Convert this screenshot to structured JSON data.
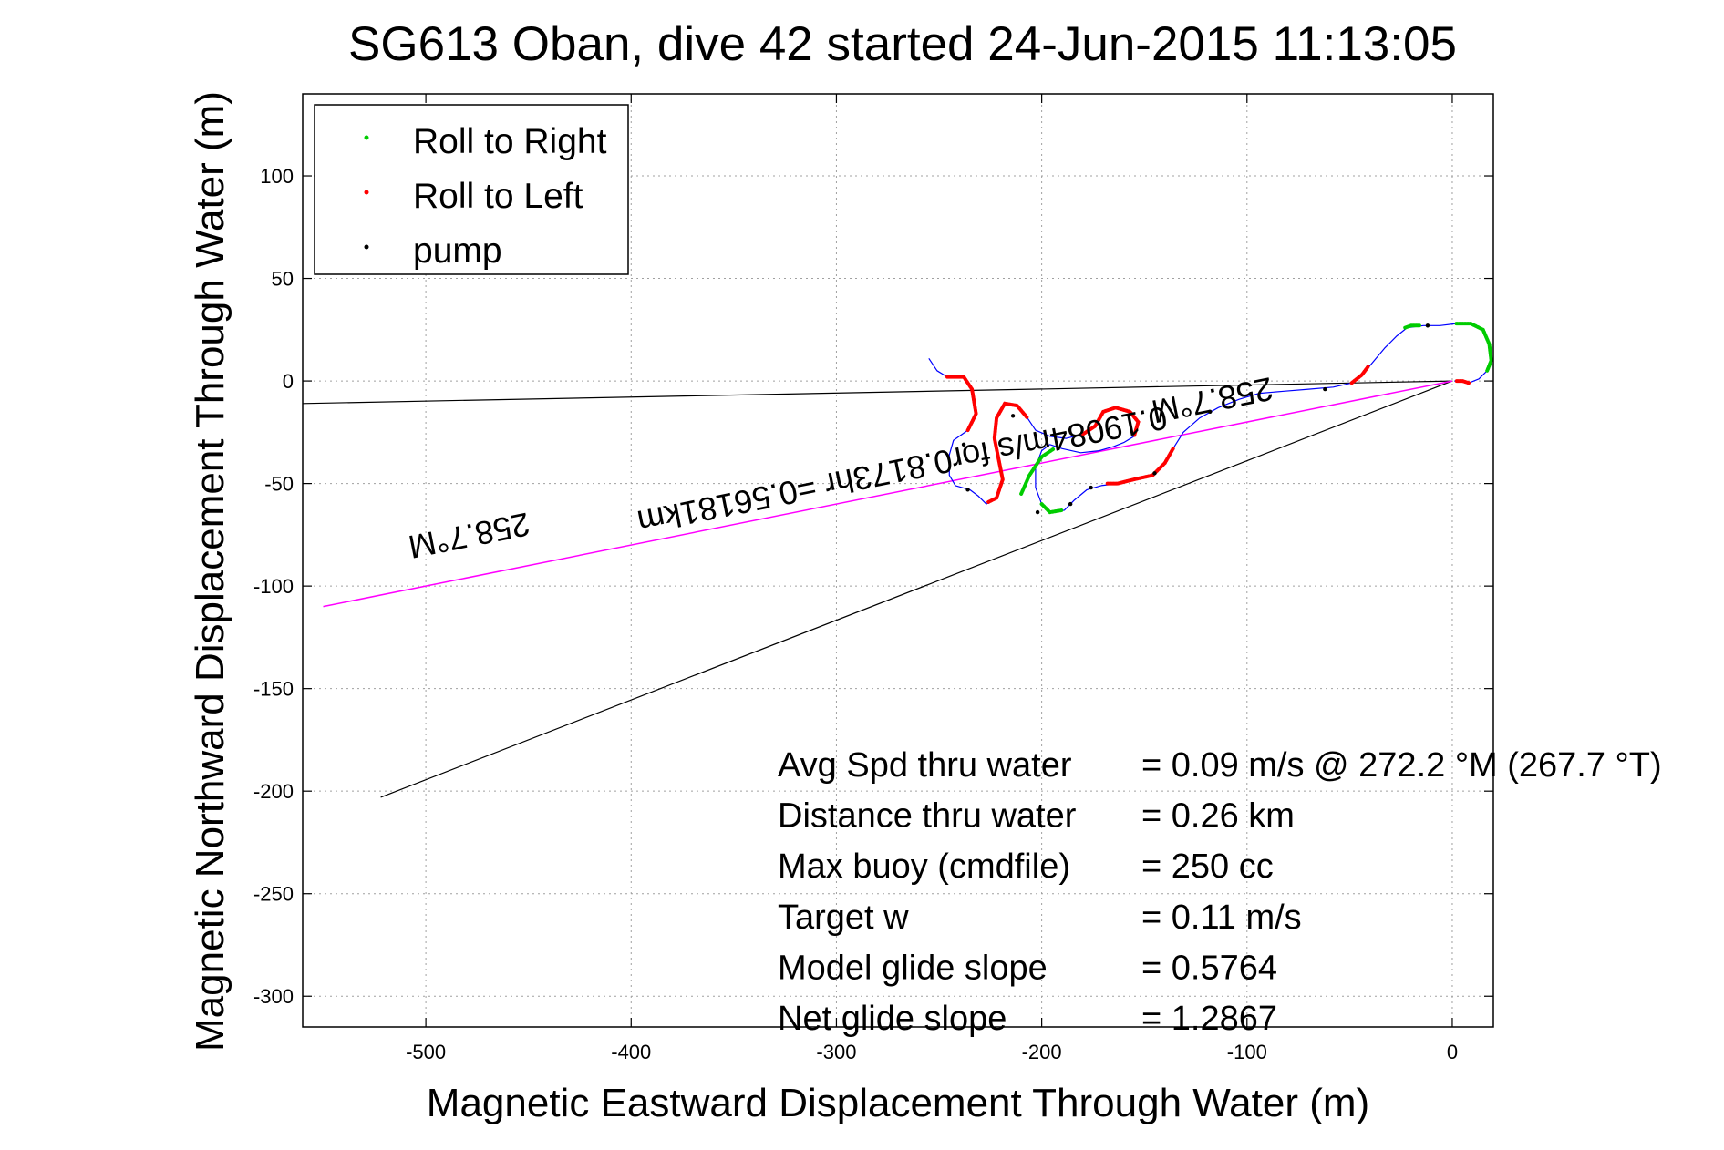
{
  "title": "SG613 Oban, dive 42 started 24-Jun-2015 11:13:05",
  "chart_data": {
    "type": "line",
    "title": "SG613 Oban, dive 42 started 24-Jun-2015 11:13:05",
    "xlabel": "Magnetic Eastward Displacement Through Water (m)",
    "ylabel": "Magnetic Northward Displacement Through Water (m)",
    "xlim": [
      -560,
      20
    ],
    "ylim": [
      -315,
      140
    ],
    "xticks": [
      -500,
      -400,
      -300,
      -200,
      -100,
      0
    ],
    "yticks": [
      100,
      50,
      0,
      -50,
      -100,
      -150,
      -200,
      -250,
      -300
    ],
    "grid": true,
    "legend": {
      "position": "top-left",
      "entries": [
        {
          "label": "Roll to Right",
          "color": "#00cc00"
        },
        {
          "label": "Roll to Left",
          "color": "#ff0000"
        },
        {
          "label": "pump",
          "color": "#000000"
        }
      ]
    },
    "colors": {
      "track": "#0000ff",
      "course": "#ff00ff",
      "cone": "#000000"
    },
    "track": [
      [
        -255,
        11
      ],
      [
        -251,
        5
      ],
      [
        -246,
        2
      ],
      [
        -238,
        2
      ],
      [
        -234,
        -4
      ],
      [
        -232,
        -16
      ],
      [
        -236,
        -24
      ],
      [
        -243,
        -29
      ],
      [
        -245,
        -36
      ],
      [
        -245,
        -46
      ],
      [
        -242,
        -51
      ],
      [
        -235,
        -53
      ],
      [
        -231,
        -56
      ],
      [
        -227,
        -60
      ],
      [
        -222,
        -57
      ],
      [
        -219,
        -48
      ],
      [
        -221,
        -38
      ],
      [
        -223,
        -28
      ],
      [
        -222,
        -18
      ],
      [
        -218,
        -11
      ],
      [
        -212,
        -12
      ],
      [
        -207,
        -18
      ],
      [
        -203,
        -24
      ],
      [
        -196,
        -27
      ],
      [
        -188,
        -28
      ],
      [
        -180,
        -26
      ],
      [
        -174,
        -22
      ],
      [
        -170,
        -15
      ],
      [
        -164,
        -13
      ],
      [
        -157,
        -15
      ],
      [
        -153,
        -20
      ],
      [
        -155,
        -27
      ],
      [
        -160,
        -30
      ],
      [
        -165,
        -32
      ],
      [
        -172,
        -34
      ],
      [
        -181,
        -35
      ],
      [
        -190,
        -33
      ],
      [
        -196,
        -31
      ],
      [
        -200,
        -34
      ],
      [
        -203,
        -42
      ],
      [
        -203,
        -52
      ],
      [
        -200,
        -60
      ],
      [
        -196,
        -64
      ],
      [
        -189,
        -63
      ],
      [
        -184,
        -58
      ],
      [
        -178,
        -53
      ],
      [
        -171,
        -51
      ],
      [
        -163,
        -50
      ],
      [
        -155,
        -48
      ],
      [
        -146,
        -46
      ],
      [
        -140,
        -40
      ],
      [
        -136,
        -33
      ],
      [
        -131,
        -25
      ],
      [
        -123,
        -18
      ],
      [
        -114,
        -13
      ],
      [
        -104,
        -9
      ],
      [
        -94,
        -6
      ],
      [
        -82,
        -5
      ],
      [
        -70,
        -4
      ],
      [
        -58,
        -3
      ],
      [
        -49,
        -1
      ],
      [
        -43,
        4
      ],
      [
        -38,
        10
      ],
      [
        -33,
        16
      ],
      [
        -27,
        22
      ],
      [
        -22,
        26
      ],
      [
        -14,
        27
      ],
      [
        -6,
        27
      ],
      [
        2,
        28
      ],
      [
        9,
        28
      ],
      [
        15,
        25
      ],
      [
        18,
        18
      ],
      [
        19,
        10
      ],
      [
        17,
        5
      ],
      [
        13,
        1
      ],
      [
        8,
        -1
      ],
      [
        5,
        0
      ],
      [
        1,
        0
      ]
    ],
    "roll_right": [
      [
        [
          -23,
          26
        ],
        [
          -20,
          27
        ],
        [
          -16,
          27
        ]
      ],
      [
        [
          2,
          28
        ],
        [
          9,
          28
        ],
        [
          15,
          25
        ],
        [
          18,
          18
        ],
        [
          19,
          10
        ],
        [
          17,
          5
        ]
      ],
      [
        [
          -210,
          -55
        ],
        [
          -206,
          -46
        ],
        [
          -200,
          -37
        ],
        [
          -194,
          -33
        ]
      ],
      [
        [
          -200,
          -60
        ],
        [
          -196,
          -64
        ],
        [
          -190,
          -63
        ]
      ]
    ],
    "roll_left": [
      [
        [
          -246,
          2
        ],
        [
          -238,
          2
        ],
        [
          -234,
          -4
        ],
        [
          -232,
          -16
        ],
        [
          -236,
          -24
        ]
      ],
      [
        [
          -226,
          -59
        ],
        [
          -222,
          -57
        ],
        [
          -219,
          -48
        ],
        [
          -221,
          -38
        ],
        [
          -223,
          -28
        ],
        [
          -222,
          -18
        ],
        [
          -218,
          -11
        ],
        [
          -212,
          -12
        ],
        [
          -207,
          -18
        ]
      ],
      [
        [
          -180,
          -26
        ],
        [
          -174,
          -22
        ],
        [
          -170,
          -15
        ],
        [
          -164,
          -13
        ],
        [
          -157,
          -15
        ],
        [
          -153,
          -20
        ],
        [
          -155,
          -27
        ]
      ],
      [
        [
          -168,
          -50
        ],
        [
          -163,
          -50
        ],
        [
          -155,
          -48
        ],
        [
          -146,
          -46
        ],
        [
          -140,
          -40
        ],
        [
          -136,
          -33
        ]
      ],
      [
        [
          -49,
          -1
        ],
        [
          -44,
          3
        ],
        [
          -41,
          7
        ]
      ],
      [
        [
          8,
          -1
        ],
        [
          5,
          0
        ],
        [
          2,
          0
        ]
      ]
    ],
    "pump": [
      [
        -238,
        -31
      ],
      [
        -236,
        -53
      ],
      [
        -214,
        -17
      ],
      [
        -202,
        -64
      ],
      [
        -186,
        -60
      ],
      [
        -176,
        -52
      ],
      [
        -145,
        -45
      ],
      [
        -118,
        -15
      ],
      [
        -62,
        -4
      ],
      [
        -12,
        27
      ]
    ],
    "course_line": [
      [
        0,
        0
      ],
      [
        -550,
        -110
      ]
    ],
    "cone_lines": [
      [
        [
          0,
          0
        ],
        [
          -560,
          -11
        ]
      ],
      [
        [
          0,
          0
        ],
        [
          -522,
          -203
        ]
      ]
    ],
    "course_annotations": [
      {
        "text": "258.7°M",
        "x": -118,
        "y": -4
      },
      {
        "text": "0.19084m/s for0.8173hr =0.56181km",
        "x": -269,
        "y": -38
      },
      {
        "text": "258.7°M",
        "x": -480,
        "y": -70
      }
    ],
    "stats": [
      {
        "label": "Avg Spd thru water",
        "value": "=  0.09 m/s @ 272.2 °M (267.7 °T)"
      },
      {
        "label": "Distance thru water",
        "value": "=  0.26 km"
      },
      {
        "label": "Max buoy (cmdfile)",
        "value": "= 250 cc"
      },
      {
        "label": "Target w",
        "value": "= 0.11 m/s"
      },
      {
        "label": "Model glide slope",
        "value": "= 0.5764"
      },
      {
        "label": "Net glide slope",
        "value": "= 1.2867"
      }
    ]
  }
}
